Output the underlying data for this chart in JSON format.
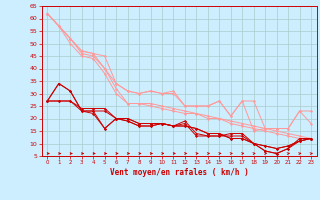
{
  "background_color": "#cceeff",
  "grid_color": "#aacccc",
  "xlabel": "Vent moyen/en rafales ( km/h )",
  "xlabel_color": "#cc0000",
  "tick_color": "#cc0000",
  "ylim": [
    5,
    65
  ],
  "xlim": [
    -0.5,
    23.5
  ],
  "yticks": [
    5,
    10,
    15,
    20,
    25,
    30,
    35,
    40,
    45,
    50,
    55,
    60,
    65
  ],
  "xticks": [
    0,
    1,
    2,
    3,
    4,
    5,
    6,
    7,
    8,
    9,
    10,
    11,
    12,
    13,
    14,
    15,
    16,
    17,
    18,
    19,
    20,
    21,
    22,
    23
  ],
  "light_lines": [
    [
      62,
      57,
      52,
      47,
      46,
      45,
      34,
      31,
      30,
      31,
      30,
      31,
      25,
      25,
      25,
      27,
      21,
      27,
      27,
      16,
      16,
      16,
      23,
      23
    ],
    [
      62,
      57,
      52,
      47,
      46,
      40,
      34,
      31,
      30,
      31,
      30,
      30,
      25,
      25,
      25,
      27,
      21,
      27,
      15,
      16,
      16,
      16,
      23,
      18
    ],
    [
      62,
      57,
      52,
      46,
      45,
      40,
      32,
      26,
      26,
      26,
      25,
      24,
      23,
      22,
      21,
      20,
      19,
      18,
      17,
      16,
      15,
      14,
      13,
      12
    ],
    [
      62,
      57,
      50,
      45,
      44,
      38,
      30,
      26,
      26,
      25,
      24,
      23,
      22,
      22,
      20,
      20,
      18,
      17,
      16,
      15,
      14,
      13,
      12,
      12
    ]
  ],
  "dark_lines": [
    [
      27,
      34,
      31,
      23,
      23,
      16,
      20,
      19,
      17,
      17,
      18,
      17,
      19,
      14,
      13,
      13,
      14,
      14,
      10,
      7,
      6,
      8,
      12,
      12
    ],
    [
      27,
      34,
      31,
      23,
      22,
      16,
      20,
      19,
      17,
      17,
      18,
      17,
      18,
      13,
      13,
      13,
      13,
      13,
      10,
      7,
      6,
      8,
      11,
      12
    ],
    [
      27,
      27,
      27,
      24,
      24,
      24,
      20,
      20,
      18,
      18,
      18,
      17,
      17,
      16,
      14,
      14,
      12,
      12,
      10,
      9,
      8,
      9,
      11,
      12
    ],
    [
      27,
      27,
      27,
      23,
      23,
      23,
      20,
      20,
      18,
      18,
      18,
      17,
      17,
      16,
      14,
      14,
      12,
      12,
      10,
      9,
      8,
      9,
      11,
      12
    ]
  ],
  "light_color": "#ff9999",
  "dark_color": "#cc0000",
  "arrow_angles": [
    0,
    0,
    0,
    0,
    0,
    0,
    15,
    15,
    15,
    15,
    20,
    20,
    25,
    25,
    30,
    30,
    35,
    35,
    40,
    40,
    45,
    45,
    45,
    45
  ]
}
